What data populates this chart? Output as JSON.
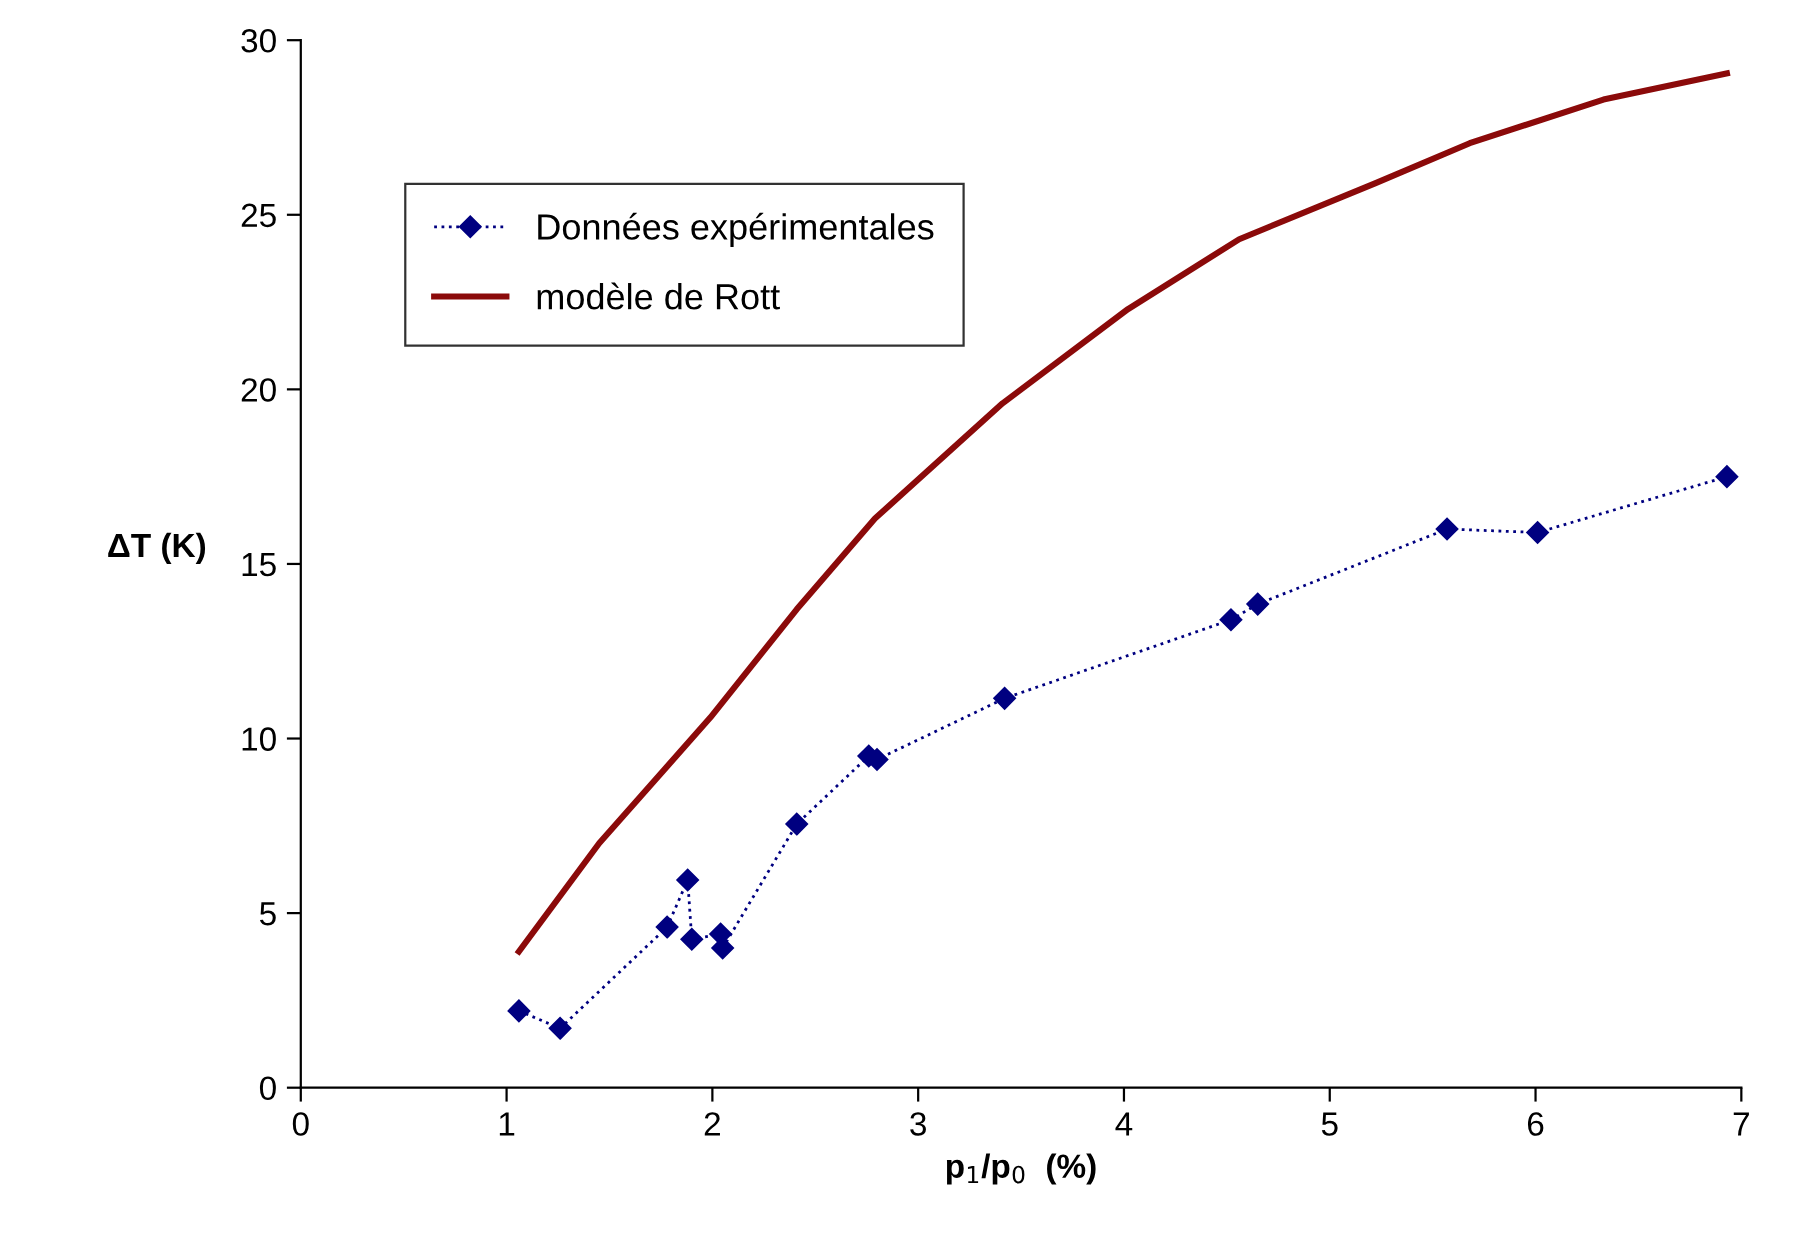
{
  "chart_data": {
    "type": "line",
    "xlabel": "p$_{1}$/p$_{0}$  (%)",
    "ylabel": "ΔT (K)",
    "xlim": [
      0,
      7
    ],
    "ylim": [
      0,
      30
    ],
    "xticks": [
      0,
      1,
      2,
      3,
      4,
      5,
      6,
      7
    ],
    "yticks": [
      0,
      5,
      10,
      15,
      20,
      25,
      30
    ],
    "grid": false,
    "legend": "top left",
    "series": [
      {
        "name": "Données expérimentales",
        "color": "#000080",
        "marker": "diamond",
        "line_style": "dotted",
        "x": [
          1.06,
          1.26,
          1.78,
          1.88,
          1.9,
          2.04,
          2.05,
          2.41,
          2.76,
          2.8,
          3.42,
          4.52,
          4.65,
          5.57,
          6.01,
          6.93
        ],
        "values": [
          2.2,
          1.7,
          4.6,
          5.95,
          4.25,
          4.4,
          4.0,
          7.55,
          9.5,
          9.4,
          11.15,
          13.4,
          13.85,
          16.0,
          15.9,
          17.5
        ]
      },
      {
        "name": "modèle de Rott",
        "color": "#8b0a0a",
        "marker": "none",
        "line_style": "solid",
        "x": [
          1.06,
          1.45,
          1.99,
          2.41,
          2.79,
          3.41,
          4.02,
          4.56,
          5.22,
          5.68,
          6.33,
          6.93
        ],
        "values": [
          3.9,
          7.0,
          10.6,
          13.7,
          16.3,
          19.6,
          22.3,
          24.3,
          25.9,
          27.05,
          28.3,
          29.05
        ]
      }
    ]
  }
}
